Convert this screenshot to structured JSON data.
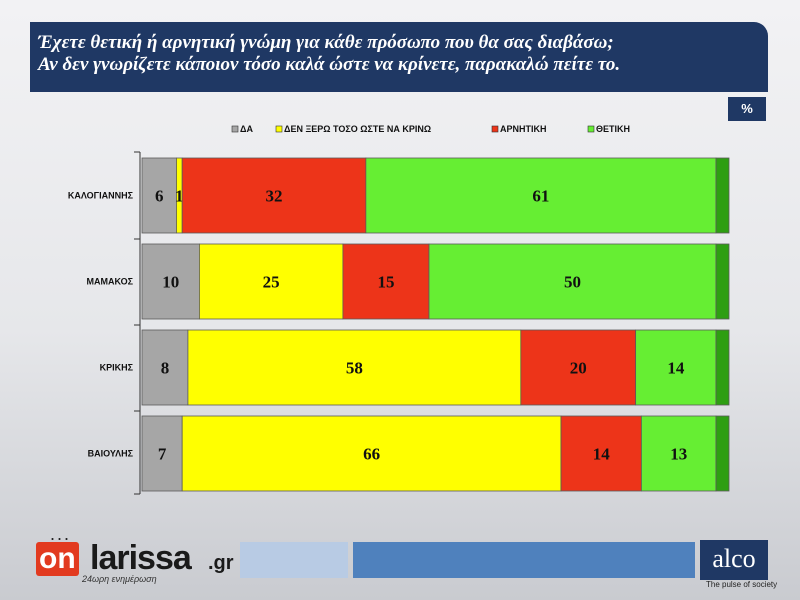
{
  "title": {
    "line1": "Έχετε θετική ή αρνητική γνώμη για κάθε πρόσωπο που θα σας διαβάσω;",
    "line2": "Αν δεν γνωρίζετε κάποιον τόσο καλά ώστε να κρίνετε, παρακαλώ πείτε το."
  },
  "unit_badge": "%",
  "chart_data": {
    "type": "bar",
    "orientation": "horizontal",
    "stacked": true,
    "categories": [
      "ΚΑΛΟΓΙΑΝΝΗΣ",
      "ΜΑΜΑΚΟΣ",
      "ΚΡΙΚΗΣ",
      "ΒΑΙΟΥΛΗΣ"
    ],
    "series": [
      {
        "name": "ΔΑ",
        "color": "#a6a6a6",
        "values": [
          6,
          10,
          8,
          7
        ]
      },
      {
        "name": "ΔΕΝ ΞΕΡΩ ΤΟΣΟ ΩΣΤΕ ΝΑ ΚΡΙΝΩ",
        "color": "#ffff00",
        "values": [
          1,
          25,
          58,
          66
        ]
      },
      {
        "name": "ΑΡΝΗΤΙΚΗ",
        "color": "#ed3419",
        "values": [
          32,
          15,
          20,
          14
        ]
      },
      {
        "name": "ΘΕΤΙΚΗ",
        "color": "#66ee33",
        "values": [
          61,
          50,
          14,
          13
        ]
      }
    ],
    "xlim": [
      0,
      100
    ],
    "legend_position": "top",
    "grid": false
  },
  "footer": {
    "logo_on": "on",
    "logo_larissa": "larissa",
    "logo_gr": ".gr",
    "logo_tagline": "24ωρη ενημέρωση",
    "logo_dots": "...",
    "alco_logo": "alco",
    "alco_tagline": "The pulse of society"
  }
}
